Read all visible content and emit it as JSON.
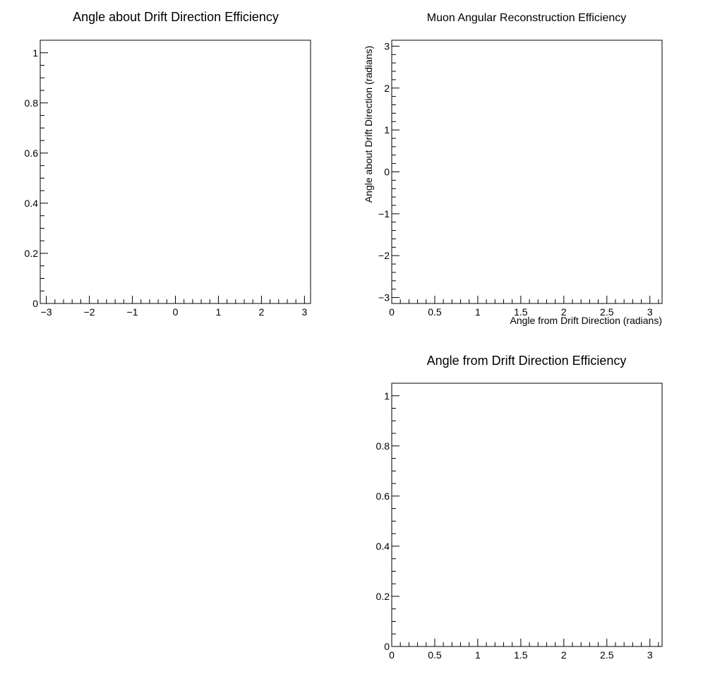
{
  "chart_data": [
    {
      "id": "phi-eff",
      "type": "scatter",
      "title": "Angle about Drift Direction Efficiency",
      "xlabel": "",
      "ylabel": "",
      "xlim": [
        -3.1416,
        3.1416
      ],
      "ylim": [
        0,
        1.05
      ],
      "x_major_ticks": [
        -3,
        -2,
        -1,
        0,
        1,
        2,
        3
      ],
      "x_tick_labels": [
        "−3",
        "−2",
        "−1",
        "0",
        "1",
        "2",
        "3"
      ],
      "x_minor_step": 0.2,
      "y_major_ticks": [
        0,
        0.2,
        0.4,
        0.6,
        0.8,
        1
      ],
      "y_tick_labels": [
        "0",
        "0.2",
        "0.4",
        "0.6",
        "0.8",
        "1"
      ],
      "y_minor_step": 0.05,
      "grid": false,
      "points": []
    },
    {
      "id": "reco-eff-2d",
      "type": "heatmap",
      "title": "Muon Angular Reconstruction Efficiency",
      "xlabel": "Angle from Drift Direction (radians)",
      "ylabel": "Angle about Drift Direction (radians)",
      "xlim": [
        0,
        3.1416
      ],
      "ylim": [
        -3.1416,
        3.1416
      ],
      "x_major_ticks": [
        0,
        0.5,
        1,
        1.5,
        2,
        2.5,
        3
      ],
      "x_tick_labels": [
        "0",
        "0.5",
        "1",
        "1.5",
        "2",
        "2.5",
        "3"
      ],
      "x_minor_step": 0.1,
      "y_major_ticks": [
        -3,
        -2,
        -1,
        0,
        1,
        2,
        3
      ],
      "y_tick_labels": [
        "−3",
        "−2",
        "−1",
        "0",
        "1",
        "2",
        "3"
      ],
      "y_minor_step": 0.2,
      "grid": false,
      "cells": []
    },
    {
      "id": "theta-eff",
      "type": "scatter",
      "title": "Angle from Drift Direction Efficiency",
      "xlabel": "",
      "ylabel": "",
      "xlim": [
        0,
        3.1416
      ],
      "ylim": [
        0,
        1.05
      ],
      "x_major_ticks": [
        0,
        0.5,
        1,
        1.5,
        2,
        2.5,
        3
      ],
      "x_tick_labels": [
        "0",
        "0.5",
        "1",
        "1.5",
        "2",
        "2.5",
        "3"
      ],
      "x_minor_step": 0.1,
      "y_major_ticks": [
        0,
        0.2,
        0.4,
        0.6,
        0.8,
        1
      ],
      "y_tick_labels": [
        "0",
        "0.2",
        "0.4",
        "0.6",
        "0.8",
        "1"
      ],
      "y_minor_step": 0.05,
      "grid": false,
      "points": []
    }
  ]
}
